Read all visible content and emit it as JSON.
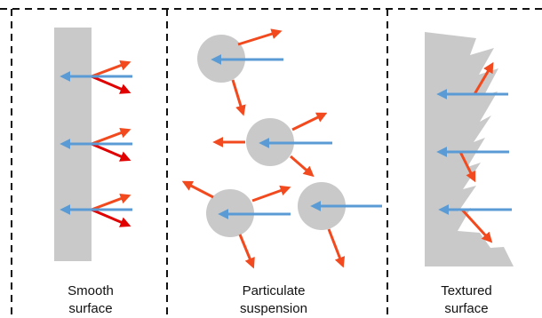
{
  "colors": {
    "surface": "#c9c9c9",
    "incident_ray": "#5b9bd5",
    "scattered_ray": "#f24a1e",
    "specular_ray": "#e00000",
    "border": "#111111"
  },
  "panels": [
    {
      "id": "smooth",
      "caption_lines": [
        "Smooth",
        "surface"
      ]
    },
    {
      "id": "particulate",
      "caption_lines": [
        "Particulate",
        "suspension"
      ]
    },
    {
      "id": "textured",
      "caption_lines": [
        "Textured",
        "surface"
      ]
    }
  ]
}
